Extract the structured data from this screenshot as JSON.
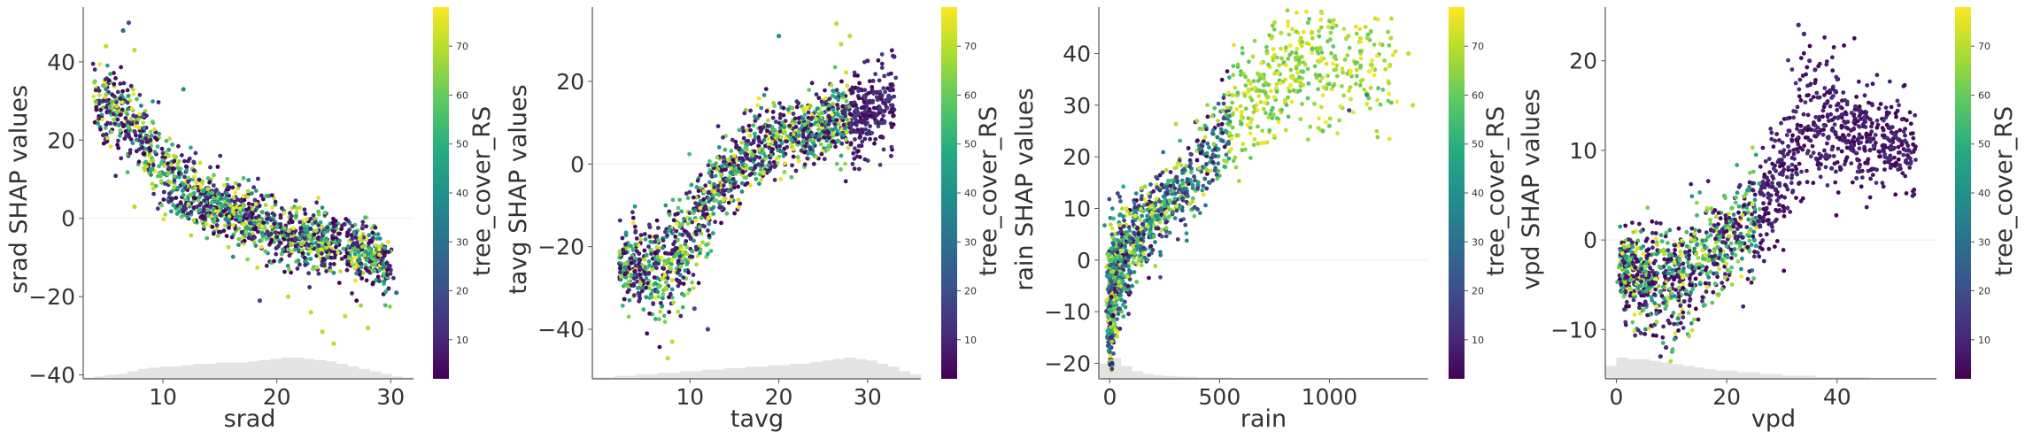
{
  "chart_data": [
    {
      "type": "scatter",
      "xlabel": "srad",
      "ylabel": "srad SHAP values",
      "xlim": [
        3,
        32
      ],
      "ylim": [
        -41,
        54
      ],
      "xticks": [
        10,
        20,
        30
      ],
      "yticks": [
        -40,
        -20,
        0,
        20,
        40
      ],
      "color_label": "tree_cover_RS",
      "color_range": [
        2,
        78
      ],
      "color_ticks": [
        10,
        20,
        30,
        40,
        50,
        60,
        70
      ],
      "histogram": true,
      "zero_line": true,
      "curve": [
        [
          4,
          30
        ],
        [
          6,
          28
        ],
        [
          8,
          22
        ],
        [
          10,
          12
        ],
        [
          12,
          7
        ],
        [
          14,
          4
        ],
        [
          16,
          1
        ],
        [
          18,
          -1
        ],
        [
          20,
          -3
        ],
        [
          22,
          -5
        ],
        [
          24,
          -6
        ],
        [
          26,
          -7
        ],
        [
          28,
          -9
        ],
        [
          30,
          -13
        ]
      ],
      "spread": [
        [
          4,
          6
        ],
        [
          10,
          5
        ],
        [
          16,
          4
        ],
        [
          24,
          4
        ],
        [
          31,
          4
        ]
      ],
      "hist": [
        1,
        2,
        3,
        4,
        6,
        8,
        9,
        10,
        10,
        11,
        12,
        12,
        13,
        13,
        13,
        14,
        15,
        16,
        17,
        17,
        16,
        15,
        14,
        12,
        10,
        8,
        6,
        4,
        2,
        1
      ],
      "points": [
        [
          6.5,
          48,
          30
        ],
        [
          7.0,
          50,
          20
        ],
        [
          5.0,
          44,
          70
        ],
        [
          7.5,
          43,
          70
        ],
        [
          11.8,
          33,
          40
        ],
        [
          7.5,
          3,
          70
        ],
        [
          18.5,
          -21,
          20
        ],
        [
          21,
          -20,
          70
        ],
        [
          23,
          -24,
          70
        ],
        [
          24,
          -29,
          70
        ],
        [
          25,
          -32,
          70
        ],
        [
          26,
          -25,
          70
        ],
        [
          28,
          -28,
          70
        ],
        [
          30.5,
          -19,
          30
        ],
        [
          29,
          -16,
          20
        ]
      ]
    },
    {
      "type": "scatter",
      "xlabel": "tavg",
      "ylabel": "tavg SHAP values",
      "xlim": [
        -1,
        36
      ],
      "ylim": [
        -52,
        38
      ],
      "xticks": [
        10,
        20,
        30
      ],
      "yticks": [
        -40,
        -20,
        0,
        20
      ],
      "color_label": "tree_cover_RS",
      "color_range": [
        2,
        78
      ],
      "color_ticks": [
        10,
        20,
        30,
        40,
        50,
        60,
        70
      ],
      "histogram": true,
      "zero_line": true,
      "curve": [
        [
          2,
          -24
        ],
        [
          5,
          -26
        ],
        [
          8,
          -24
        ],
        [
          10,
          -18
        ],
        [
          12,
          -10
        ],
        [
          14,
          -4
        ],
        [
          16,
          1
        ],
        [
          18,
          4
        ],
        [
          20,
          6
        ],
        [
          22,
          8
        ],
        [
          24,
          9
        ],
        [
          26,
          11
        ],
        [
          28,
          10
        ],
        [
          30,
          12
        ],
        [
          33,
          15
        ]
      ],
      "spread": [
        [
          2,
          4
        ],
        [
          8,
          7
        ],
        [
          14,
          5
        ],
        [
          22,
          4
        ],
        [
          28,
          5
        ],
        [
          33,
          5
        ]
      ],
      "hist": [
        1,
        1,
        2,
        2,
        3,
        3,
        4,
        4,
        5,
        5,
        6,
        6,
        7,
        7,
        8,
        8,
        9,
        9,
        10,
        10,
        11,
        12,
        13,
        14,
        13,
        12,
        10,
        8,
        5,
        3
      ],
      "points": [
        [
          26.5,
          34,
          70
        ],
        [
          28,
          31,
          70
        ],
        [
          20,
          31,
          40
        ],
        [
          27,
          29,
          70
        ],
        [
          10.5,
          -35,
          20
        ],
        [
          12,
          -40,
          20
        ],
        [
          7.5,
          -47,
          70
        ],
        [
          8,
          -43,
          70
        ],
        [
          30,
          25,
          10
        ],
        [
          33,
          26,
          10
        ]
      ]
    },
    {
      "type": "scatter",
      "xlabel": "rain",
      "ylabel": "rain SHAP values",
      "xlim": [
        -50,
        1450
      ],
      "ylim": [
        -23,
        49
      ],
      "xticks": [
        0,
        500,
        1000
      ],
      "yticks": [
        -20,
        -10,
        0,
        10,
        20,
        30,
        40
      ],
      "color_label": "tree_cover_RS",
      "color_range": [
        2,
        78
      ],
      "color_ticks": [
        10,
        20,
        30,
        40,
        50,
        60,
        70
      ],
      "histogram": true,
      "zero_line": true,
      "curve": [
        [
          0,
          -8
        ],
        [
          40,
          -2
        ],
        [
          100,
          3
        ],
        [
          200,
          8
        ],
        [
          300,
          12
        ],
        [
          400,
          17
        ],
        [
          500,
          23
        ],
        [
          600,
          30
        ],
        [
          800,
          36
        ],
        [
          1000,
          38
        ],
        [
          1300,
          38
        ]
      ],
      "spread": [
        [
          0,
          6
        ],
        [
          100,
          4
        ],
        [
          300,
          4
        ],
        [
          600,
          5
        ],
        [
          1000,
          6
        ],
        [
          1300,
          6
        ]
      ],
      "hist": [
        22,
        30,
        18,
        11,
        7,
        5,
        4,
        3,
        3,
        2,
        2,
        2,
        1,
        1,
        1,
        1,
        1,
        1,
        1,
        1,
        0,
        0,
        1,
        0,
        0,
        0,
        0,
        0,
        0,
        0
      ],
      "points": [
        [
          750,
          46,
          70
        ],
        [
          780,
          44,
          70
        ],
        [
          870,
          43,
          70
        ],
        [
          920,
          44,
          70
        ],
        [
          1280,
          43,
          70
        ],
        [
          1380,
          30,
          70
        ],
        [
          1090,
          29,
          20
        ],
        [
          1000,
          26,
          60
        ],
        [
          970,
          25,
          60
        ],
        [
          1170,
          32,
          40
        ],
        [
          1360,
          40,
          70
        ],
        [
          10,
          -20,
          10
        ],
        [
          5,
          -15,
          10
        ]
      ]
    },
    {
      "type": "scatter",
      "xlabel": "vpd",
      "ylabel": "vpd SHAP values",
      "xlim": [
        -2,
        58
      ],
      "ylim": [
        -15.5,
        26
      ],
      "xticks": [
        0,
        20,
        40
      ],
      "yticks": [
        -10,
        0,
        10,
        20
      ],
      "color_label": "tree_cover_RS",
      "color_range": [
        2,
        78
      ],
      "color_ticks": [
        10,
        20,
        30,
        40,
        50,
        60,
        70
      ],
      "histogram": true,
      "zero_line": true,
      "curve": [
        [
          1,
          -3
        ],
        [
          4,
          -4
        ],
        [
          7,
          -4
        ],
        [
          10,
          -4
        ],
        [
          14,
          -3
        ],
        [
          18,
          -1
        ],
        [
          22,
          1
        ],
        [
          26,
          3
        ],
        [
          30,
          7
        ],
        [
          34,
          12
        ],
        [
          38,
          14
        ],
        [
          42,
          12
        ],
        [
          48,
          11
        ],
        [
          54,
          10
        ]
      ],
      "spread": [
        [
          1,
          2
        ],
        [
          8,
          3
        ],
        [
          16,
          3
        ],
        [
          26,
          3
        ],
        [
          36,
          4
        ],
        [
          44,
          3
        ],
        [
          54,
          2
        ]
      ],
      "hist": [
        8,
        13,
        12,
        12,
        11,
        10,
        9,
        8,
        7,
        6,
        5,
        5,
        4,
        4,
        3,
        3,
        2,
        2,
        2,
        1,
        1,
        1,
        1,
        1,
        0,
        0,
        0,
        0,
        0,
        0
      ],
      "points": [
        [
          33,
          24,
          10
        ],
        [
          34,
          23,
          10
        ],
        [
          35,
          20,
          10
        ],
        [
          36,
          19,
          10
        ],
        [
          41,
          14,
          10
        ],
        [
          46,
          11,
          10
        ],
        [
          53,
          10,
          10
        ],
        [
          39,
          8,
          10
        ],
        [
          8,
          -13,
          10
        ],
        [
          9,
          -12,
          10
        ]
      ]
    }
  ]
}
